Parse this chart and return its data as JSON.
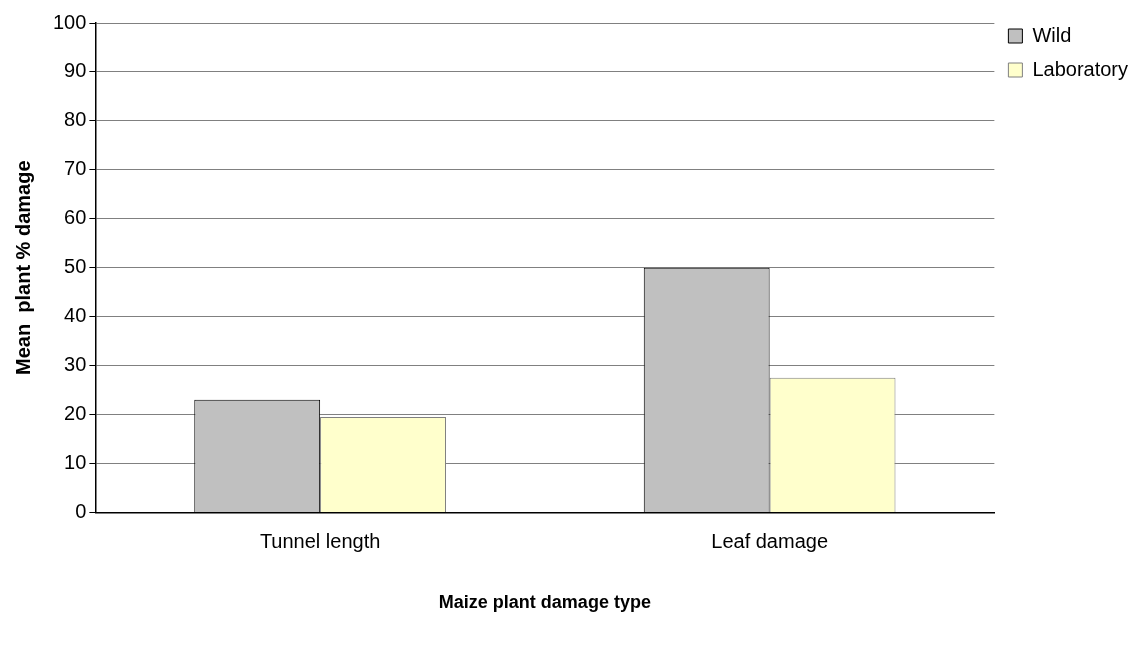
{
  "chart_data": {
    "type": "bar",
    "xlabel": "Maize plant damage type",
    "ylabel": "Mean  plant % damage",
    "categories": [
      "Tunnel length",
      "Leaf damage"
    ],
    "series": [
      {
        "name": "Wild",
        "color": "#c0c0c0",
        "values": [
          23,
          50
        ]
      },
      {
        "name": "Laboratory",
        "color": "#ffffcc",
        "values": [
          19.5,
          27.5
        ]
      }
    ],
    "ylim": [
      0,
      100
    ],
    "yticks": [
      0,
      10,
      20,
      30,
      40,
      50,
      60,
      70,
      80,
      90,
      100
    ],
    "grid": "y",
    "legend": "top right"
  }
}
